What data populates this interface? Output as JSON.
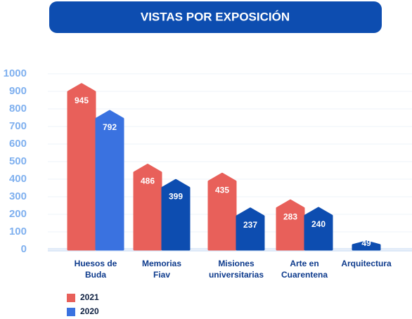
{
  "chart_data": {
    "type": "bar",
    "title": "VISTAS POR EXPOSICIÓN",
    "categories": [
      "Huesos de Buda",
      "Memorias Fiav",
      "Misiones universitarias",
      "Arte en Cuarentena",
      "Arquitectura"
    ],
    "series": [
      {
        "name": "2021",
        "color": "#e8605a",
        "values": [
          945,
          486,
          435,
          283,
          null
        ]
      },
      {
        "name": "2020",
        "color": "#3a72e0",
        "colors": [
          "#3a72e0",
          "#0d4db0",
          "#0d4db0",
          "#0d4db0",
          "#0d4db0"
        ],
        "values": [
          792,
          399,
          237,
          240,
          49
        ]
      }
    ],
    "ylim": [
      0,
      1000
    ],
    "yticks": [
      0,
      100,
      200,
      300,
      400,
      500,
      600,
      700,
      800,
      900,
      1000
    ],
    "grid": true
  }
}
